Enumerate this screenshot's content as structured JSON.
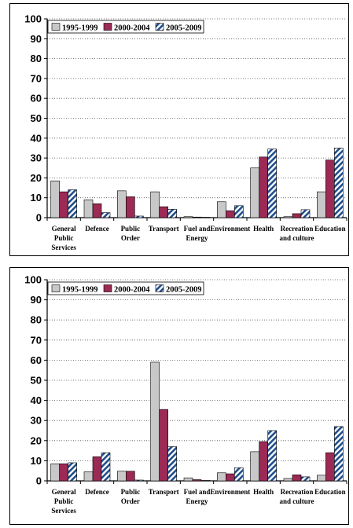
{
  "chart_data": [
    {
      "type": "bar",
      "categories": [
        "General Public Services",
        "Defence",
        "Public Order",
        "Transport",
        "Fuel and Energy",
        "Environment",
        "Health",
        "Recreation and culture",
        "Education"
      ],
      "category_lines": [
        [
          "General",
          "Public",
          "Services"
        ],
        [
          "Defence"
        ],
        [
          "Public",
          "Order"
        ],
        [
          "Transport"
        ],
        [
          "Fuel and",
          "Energy"
        ],
        [
          "Environment"
        ],
        [
          "Health"
        ],
        [
          "Recreation",
          "and culture"
        ],
        [
          "Education"
        ]
      ],
      "series": [
        {
          "name": "1995-1999",
          "values": [
            18.5,
            9,
            13.5,
            13,
            0.5,
            8,
            25,
            0.5,
            13
          ],
          "color": "#c8c8c8",
          "pattern": "solid"
        },
        {
          "name": "2000-2004",
          "values": [
            13,
            7,
            10.5,
            5.5,
            0.3,
            3.5,
            30.5,
            2,
            29
          ],
          "color": "#9b2a55",
          "pattern": "solid"
        },
        {
          "name": "2005-2009",
          "values": [
            14,
            2.5,
            0.8,
            4.2,
            0.2,
            6,
            34.5,
            4,
            35
          ],
          "color": "#6fa8d8",
          "pattern": "hatch"
        }
      ],
      "yticks": [
        "0",
        "10",
        "20",
        "30",
        "40",
        "50",
        "60",
        "70",
        "80",
        "90",
        "100"
      ],
      "ylim": [
        0,
        100
      ],
      "grid": "dotted-horizontal",
      "legend": "top-left"
    },
    {
      "type": "bar",
      "categories": [
        "General Public Services",
        "Defence",
        "Public Order",
        "Transport",
        "Fuel and Energy",
        "Environment",
        "Health",
        "Recreation and culture",
        "Education"
      ],
      "category_lines": [
        [
          "General",
          "Public",
          "Services"
        ],
        [
          "Defence"
        ],
        [
          "Public",
          "Order"
        ],
        [
          "Transport"
        ],
        [
          "Fuel and",
          "Energy"
        ],
        [
          "Environment"
        ],
        [
          "Health"
        ],
        [
          "Recreation",
          "and culture"
        ],
        [
          "Education"
        ]
      ],
      "series": [
        {
          "name": "1995-1999",
          "values": [
            8.5,
            4.5,
            4.8,
            59,
            1.5,
            4,
            14.5,
            1.2,
            2.8
          ],
          "color": "#c8c8c8",
          "pattern": "solid"
        },
        {
          "name": "2000-2004",
          "values": [
            8.5,
            12,
            4.8,
            35.5,
            0.6,
            3.5,
            19.5,
            3,
            14
          ],
          "color": "#9b2a55",
          "pattern": "solid"
        },
        {
          "name": "2005-2009",
          "values": [
            9,
            14,
            0.4,
            17,
            0.2,
            6.5,
            25,
            2,
            27
          ],
          "color": "#6fa8d8",
          "pattern": "hatch"
        }
      ],
      "yticks": [
        "0",
        "10",
        "20",
        "30",
        "40",
        "50",
        "60",
        "70",
        "80",
        "90",
        "100"
      ],
      "ylim": [
        0,
        100
      ],
      "grid": "dotted-horizontal",
      "legend": "top-left"
    }
  ]
}
